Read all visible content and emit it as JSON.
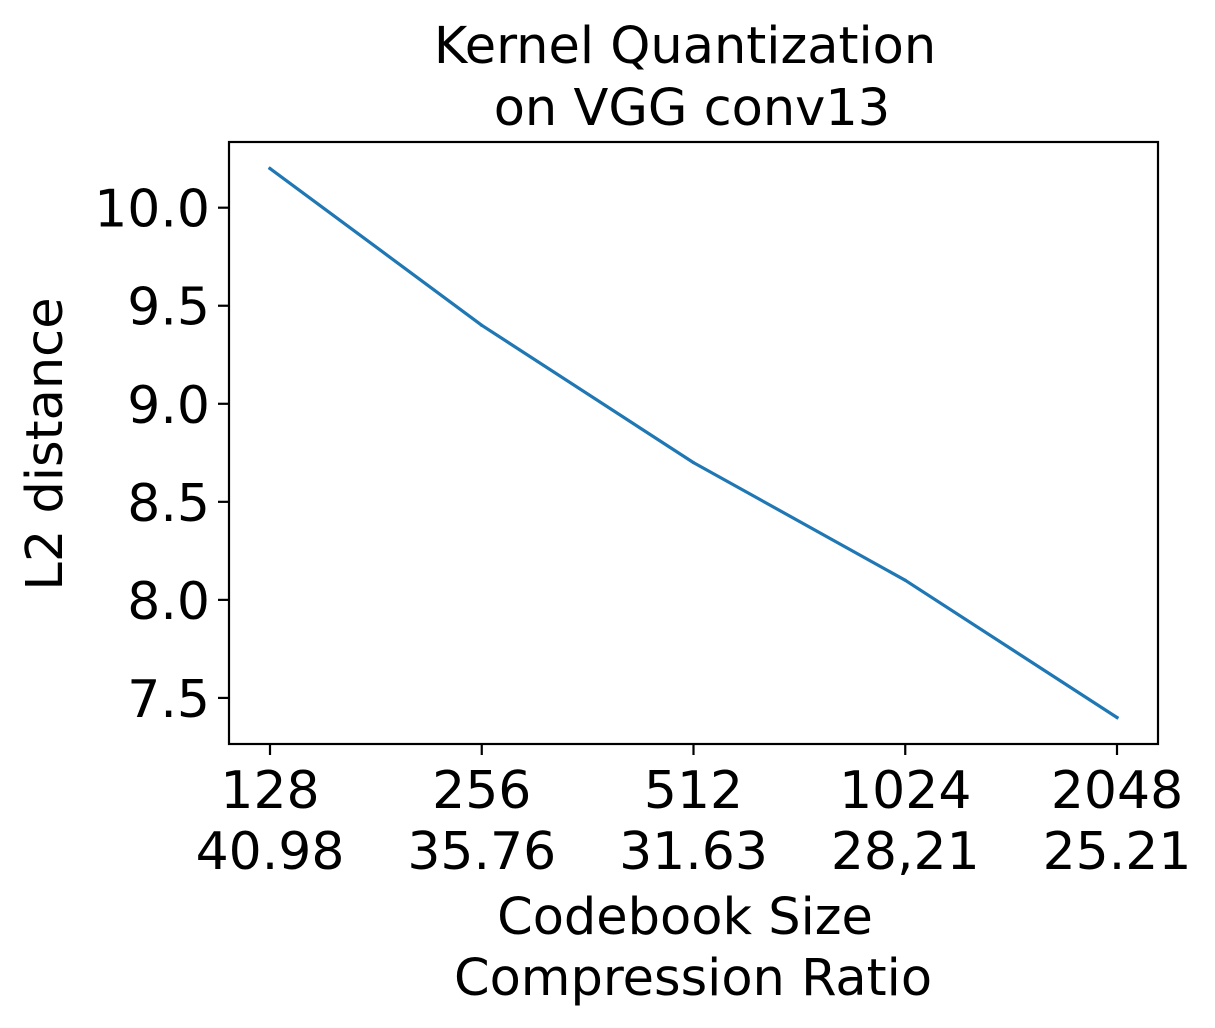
{
  "chart_data": {
    "type": "line",
    "title": [
      "Kernel Quantization",
      "on VGG conv13"
    ],
    "xlabel": [
      "Codebook Size",
      "Compression Ratio"
    ],
    "ylabel": "L2 distance",
    "x_ticks": [
      {
        "codebook": "128",
        "ratio": "40.98"
      },
      {
        "codebook": "256",
        "ratio": "35.76"
      },
      {
        "codebook": "512",
        "ratio": "31.63"
      },
      {
        "codebook": "1024",
        "ratio": "28,21"
      },
      {
        "codebook": "2048",
        "ratio": "25.21"
      }
    ],
    "y_ticks": [
      "7.5",
      "8.0",
      "8.5",
      "9.0",
      "9.5",
      "10.0"
    ],
    "ylim": [
      7.265,
      10.335
    ],
    "series": [
      {
        "color": "#1f77b4",
        "values": [
          10.2,
          9.4,
          8.7,
          8.1,
          7.4
        ]
      }
    ],
    "grid": false
  }
}
